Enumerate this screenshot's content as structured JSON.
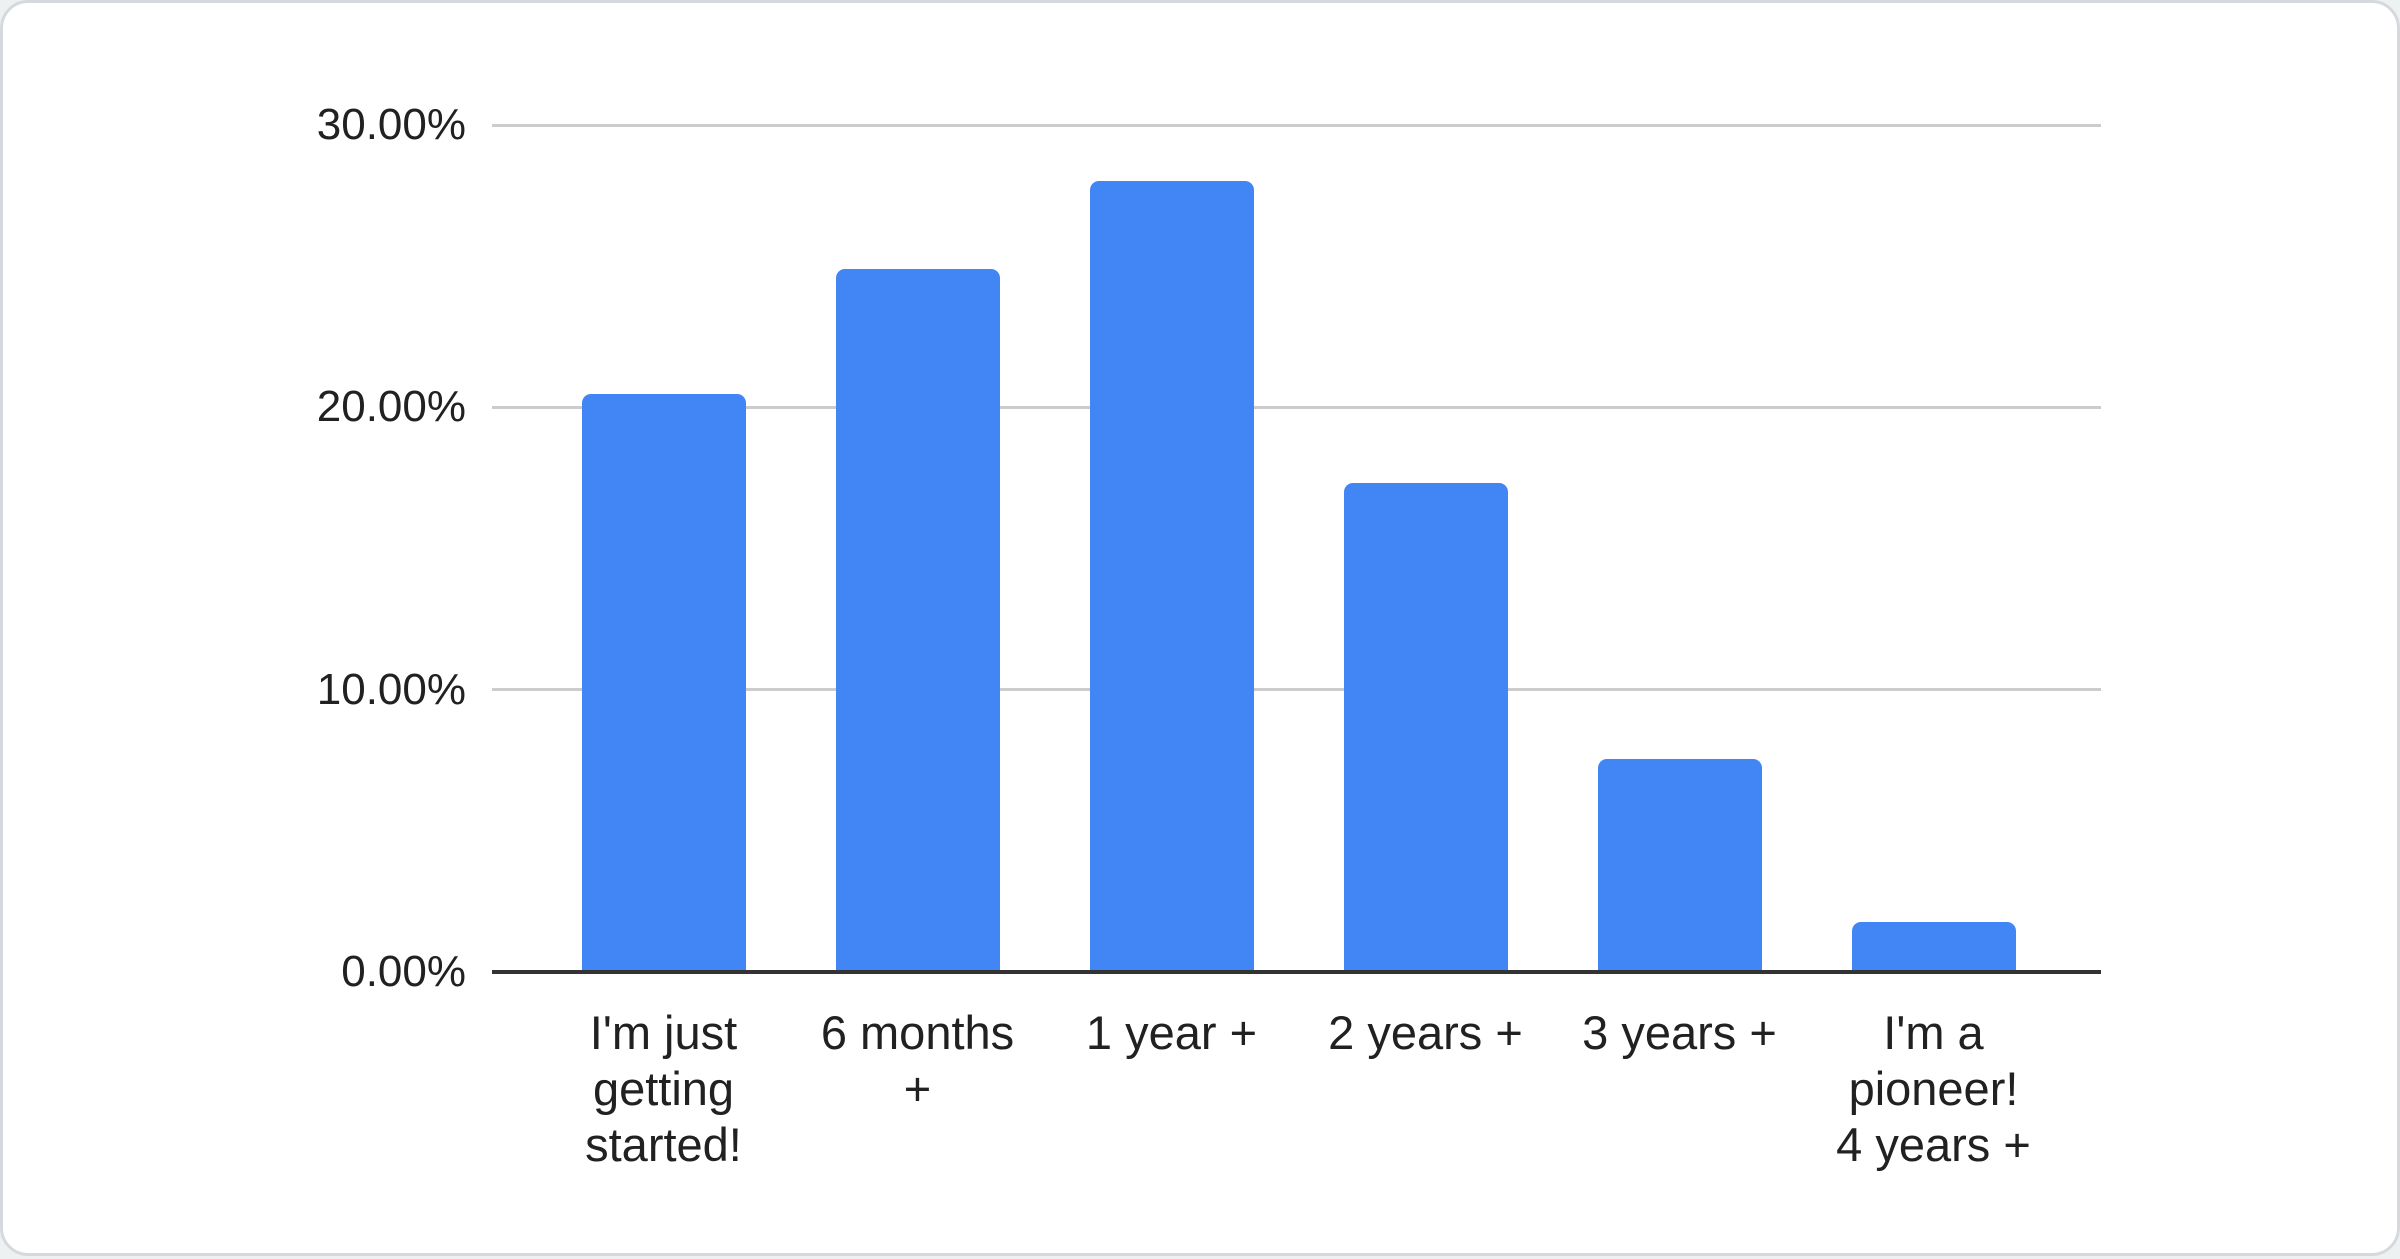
{
  "chart_data": {
    "type": "bar",
    "title": "",
    "categories": [
      "I'm just\ngetting\nstarted!",
      "6 months\n+",
      "1 year +",
      "2 years +",
      "3 years +",
      "I'm a\npioneer!\n4 years +"
    ],
    "values": [
      20.46,
      24.9,
      28.03,
      17.31,
      7.54,
      1.76
    ],
    "value_unit": "%",
    "ylim": [
      0,
      30
    ],
    "yticks": [
      0,
      10,
      20,
      30
    ],
    "ytick_labels": [
      "0.00%",
      "10.00%",
      "20.00%",
      "30.00%"
    ],
    "xlabel": "",
    "ylabel": "",
    "grid": true,
    "legend_position": "none",
    "bar_color": "#4285f4",
    "gridline_color": "#cccccc",
    "baseline_color": "#333333",
    "axis_label_color": "#212121",
    "card_background": "#ffffff",
    "card_border_color": "#d5d9dd"
  }
}
